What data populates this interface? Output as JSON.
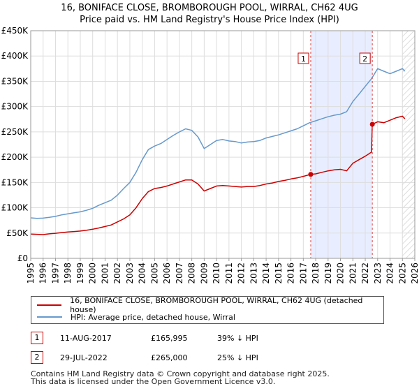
{
  "chart_data": {
    "type": "line",
    "title": "16, BONIFACE CLOSE, BROMBOROUGH POOL, WIRRAL, CH62 4UG",
    "subtitle": "Price paid vs. HM Land Registry's House Price Index (HPI)",
    "x_range": [
      1995,
      2026
    ],
    "ylim": [
      0,
      450000
    ],
    "y_ticks": [
      {
        "value": 0,
        "label": "£0"
      },
      {
        "value": 50000,
        "label": "£50K"
      },
      {
        "value": 100000,
        "label": "£100K"
      },
      {
        "value": 150000,
        "label": "£150K"
      },
      {
        "value": 200000,
        "label": "£200K"
      },
      {
        "value": 250000,
        "label": "£250K"
      },
      {
        "value": 300000,
        "label": "£300K"
      },
      {
        "value": 350000,
        "label": "£350K"
      },
      {
        "value": 400000,
        "label": "£400K"
      },
      {
        "value": 450000,
        "label": "£450K"
      }
    ],
    "x_ticks": [
      "1995",
      "1996",
      "1997",
      "1998",
      "1999",
      "2000",
      "2001",
      "2002",
      "2003",
      "2004",
      "2005",
      "2006",
      "2007",
      "2008",
      "2009",
      "2010",
      "2011",
      "2012",
      "2013",
      "2014",
      "2015",
      "2016",
      "2017",
      "2018",
      "2019",
      "2020",
      "2021",
      "2022",
      "2023",
      "2024",
      "2025",
      "2026"
    ],
    "series": [
      {
        "name": "16, BONIFACE CLOSE, BROMBOROUGH POOL, WIRRAL, CH62 4UG (detached house)",
        "color": "#cc0000",
        "points": [
          [
            1995.0,
            48000
          ],
          [
            1995.5,
            47500
          ],
          [
            1996.0,
            47000
          ],
          [
            1996.5,
            48500
          ],
          [
            1997.0,
            49500
          ],
          [
            1997.5,
            51000
          ],
          [
            1998.0,
            52000
          ],
          [
            1998.5,
            53000
          ],
          [
            1999.0,
            54000
          ],
          [
            1999.5,
            55500
          ],
          [
            2000.0,
            57500
          ],
          [
            2000.5,
            60000
          ],
          [
            2001.0,
            63000
          ],
          [
            2001.5,
            66000
          ],
          [
            2002.0,
            72000
          ],
          [
            2002.5,
            78000
          ],
          [
            2003.0,
            86000
          ],
          [
            2003.5,
            100000
          ],
          [
            2004.0,
            118000
          ],
          [
            2004.5,
            132000
          ],
          [
            2005.0,
            138000
          ],
          [
            2005.5,
            140000
          ],
          [
            2006.0,
            143000
          ],
          [
            2006.5,
            147000
          ],
          [
            2007.0,
            151000
          ],
          [
            2007.5,
            155000
          ],
          [
            2008.0,
            155000
          ],
          [
            2008.5,
            147000
          ],
          [
            2009.0,
            133000
          ],
          [
            2009.5,
            138000
          ],
          [
            2010.0,
            143000
          ],
          [
            2010.5,
            144000
          ],
          [
            2011.0,
            143000
          ],
          [
            2011.5,
            142000
          ],
          [
            2012.0,
            141000
          ],
          [
            2012.5,
            142000
          ],
          [
            2013.0,
            142000
          ],
          [
            2013.5,
            144000
          ],
          [
            2014.0,
            147000
          ],
          [
            2014.5,
            149000
          ],
          [
            2015.0,
            152000
          ],
          [
            2015.5,
            154000
          ],
          [
            2016.0,
            157000
          ],
          [
            2016.5,
            159000
          ],
          [
            2017.0,
            162000
          ],
          [
            2017.6,
            165995
          ],
          [
            2018.0,
            167000
          ],
          [
            2018.5,
            170000
          ],
          [
            2019.0,
            173000
          ],
          [
            2019.5,
            175000
          ],
          [
            2020.0,
            176000
          ],
          [
            2020.5,
            173000
          ],
          [
            2021.0,
            188000
          ],
          [
            2021.5,
            195000
          ],
          [
            2022.0,
            202000
          ],
          [
            2022.5,
            210000
          ],
          [
            2022.57,
            265000
          ],
          [
            2023.0,
            270000
          ],
          [
            2023.5,
            268000
          ],
          [
            2024.0,
            273000
          ],
          [
            2024.5,
            278000
          ],
          [
            2025.0,
            281000
          ],
          [
            2025.2,
            276000
          ]
        ]
      },
      {
        "name": "HPI: Average price, detached house, Wirral",
        "color": "#6699cc",
        "points": [
          [
            1995.0,
            80000
          ],
          [
            1995.5,
            79000
          ],
          [
            1996.0,
            79500
          ],
          [
            1996.5,
            81000
          ],
          [
            1997.0,
            83000
          ],
          [
            1997.5,
            86000
          ],
          [
            1998.0,
            88000
          ],
          [
            1998.5,
            90000
          ],
          [
            1999.0,
            92000
          ],
          [
            1999.5,
            95000
          ],
          [
            2000.0,
            99000
          ],
          [
            2000.5,
            105000
          ],
          [
            2001.0,
            110000
          ],
          [
            2001.5,
            115000
          ],
          [
            2002.0,
            125000
          ],
          [
            2002.5,
            138000
          ],
          [
            2003.0,
            150000
          ],
          [
            2003.5,
            170000
          ],
          [
            2004.0,
            195000
          ],
          [
            2004.5,
            215000
          ],
          [
            2005.0,
            222000
          ],
          [
            2005.5,
            227000
          ],
          [
            2006.0,
            235000
          ],
          [
            2006.5,
            243000
          ],
          [
            2007.0,
            250000
          ],
          [
            2007.5,
            256000
          ],
          [
            2008.0,
            253000
          ],
          [
            2008.5,
            240000
          ],
          [
            2009.0,
            217000
          ],
          [
            2009.5,
            225000
          ],
          [
            2010.0,
            233000
          ],
          [
            2010.5,
            235000
          ],
          [
            2011.0,
            232000
          ],
          [
            2011.5,
            231000
          ],
          [
            2012.0,
            228000
          ],
          [
            2012.5,
            230000
          ],
          [
            2013.0,
            231000
          ],
          [
            2013.5,
            233000
          ],
          [
            2014.0,
            238000
          ],
          [
            2014.5,
            241000
          ],
          [
            2015.0,
            244000
          ],
          [
            2015.5,
            248000
          ],
          [
            2016.0,
            252000
          ],
          [
            2016.5,
            256000
          ],
          [
            2017.0,
            262000
          ],
          [
            2017.5,
            268000
          ],
          [
            2018.0,
            272000
          ],
          [
            2018.5,
            276000
          ],
          [
            2019.0,
            280000
          ],
          [
            2019.5,
            283000
          ],
          [
            2020.0,
            285000
          ],
          [
            2020.5,
            290000
          ],
          [
            2021.0,
            310000
          ],
          [
            2021.5,
            325000
          ],
          [
            2022.0,
            340000
          ],
          [
            2022.5,
            355000
          ],
          [
            2023.0,
            375000
          ],
          [
            2023.5,
            370000
          ],
          [
            2024.0,
            365000
          ],
          [
            2024.5,
            370000
          ],
          [
            2025.0,
            375000
          ],
          [
            2025.2,
            370000
          ]
        ]
      }
    ],
    "markers": [
      {
        "label": "1",
        "x": 2017.6,
        "value": 165995
      },
      {
        "label": "2",
        "x": 2022.57,
        "value": 265000
      }
    ],
    "shade_range": [
      2017.6,
      2022.57
    ],
    "shade_color": "#e8eeff",
    "future_hatch_from": 2025.0
  },
  "legend": {
    "items": [
      {
        "label": "16, BONIFACE CLOSE, BROMBOROUGH POOL, WIRRAL, CH62 4UG (detached house)",
        "color": "#cc0000"
      },
      {
        "label": "HPI: Average price, detached house, Wirral",
        "color": "#6699cc"
      }
    ]
  },
  "transactions": [
    {
      "num": "1",
      "date": "11-AUG-2017",
      "price": "£165,995",
      "hpi": "39% ↓ HPI"
    },
    {
      "num": "2",
      "date": "29-JUL-2022",
      "price": "£265,000",
      "hpi": "25% ↓ HPI"
    }
  ],
  "footer": {
    "line1": "Contains HM Land Registry data © Crown copyright and database right 2025.",
    "line2": "This data is licensed under the Open Government Licence v3.0."
  }
}
